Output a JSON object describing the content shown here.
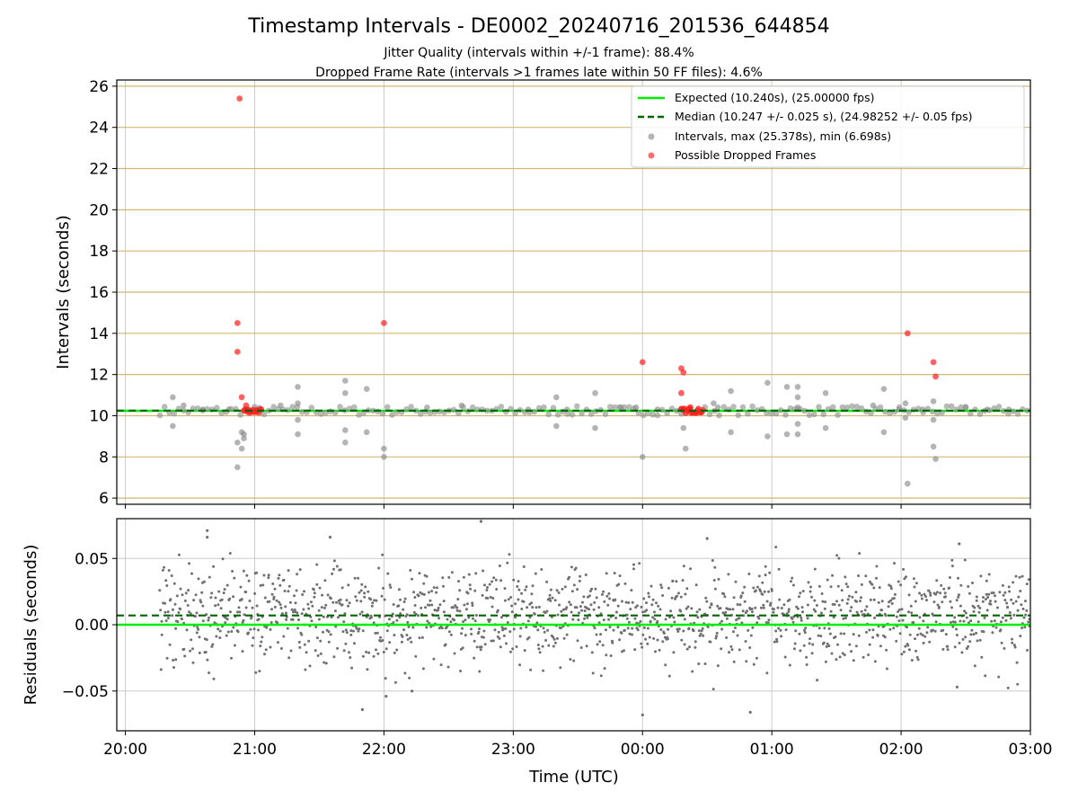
{
  "chart_data": [
    {
      "type": "scatter",
      "title": "Timestamp Intervals - DE0002_20240716_201536_644854",
      "subtitle_lines": [
        "Jitter Quality (intervals within +/-1 frame): 88.4%",
        "Dropped Frame Rate (intervals >1 frames late within 50 FF files): 4.6%"
      ],
      "xlabel": "",
      "ylabel": "Intervals (seconds)",
      "xlim": [
        "19:56",
        "03:00"
      ],
      "ylim": [
        5.7,
        26.3
      ],
      "x_tick_labels": [
        "20:00",
        "21:00",
        "22:00",
        "23:00",
        "00:00",
        "01:00",
        "02:00",
        "03:00"
      ],
      "y_ticks": [
        6,
        8,
        10,
        12,
        14,
        16,
        18,
        20,
        22,
        24,
        26
      ],
      "grid": "horizontal dark goldenrod lines at each y tick, vertical gray lines at each x tick",
      "legend_position": "upper-right",
      "legend": [
        "Expected (10.240s), (25.00000 fps)",
        "Median (10.247 +/- 0.025 s), (24.98252 +/- 0.05 fps)",
        "Intervals, max (25.378s), min (6.698s)",
        "Possible Dropped Frames"
      ],
      "expected_line": 10.24,
      "median_line": 10.247,
      "colors": {
        "expected": "#00ee00",
        "median": "#006400",
        "intervals": "#8c8c8c",
        "dropped": "#ff2020",
        "hgrid": "#d2b872",
        "vgrid": "#cccccc"
      },
      "intervals_outliers": [
        {
          "x": "20:22",
          "y": 10.9
        },
        {
          "x": "20:22",
          "y": 9.5
        },
        {
          "x": "20:27",
          "y": 10.5
        },
        {
          "x": "20:36",
          "y": 10.3
        },
        {
          "x": "20:48",
          "y": 10.3
        },
        {
          "x": "20:52",
          "y": 8.7
        },
        {
          "x": "20:52",
          "y": 7.5
        },
        {
          "x": "20:54",
          "y": 9.2
        },
        {
          "x": "20:54",
          "y": 8.4
        },
        {
          "x": "20:55",
          "y": 8.9
        },
        {
          "x": "20:55",
          "y": 9.1
        },
        {
          "x": "21:12",
          "y": 10.5
        },
        {
          "x": "21:20",
          "y": 11.4
        },
        {
          "x": "21:20",
          "y": 10.6
        },
        {
          "x": "21:20",
          "y": 9.8
        },
        {
          "x": "21:20",
          "y": 9.1
        },
        {
          "x": "21:42",
          "y": 11.7
        },
        {
          "x": "21:42",
          "y": 11.1
        },
        {
          "x": "21:42",
          "y": 9.3
        },
        {
          "x": "21:42",
          "y": 8.7
        },
        {
          "x": "21:52",
          "y": 11.3
        },
        {
          "x": "21:52",
          "y": 9.2
        },
        {
          "x": "22:00",
          "y": 8.4
        },
        {
          "x": "22:00",
          "y": 8.0
        },
        {
          "x": "22:20",
          "y": 10.4
        },
        {
          "x": "22:36",
          "y": 10.5
        },
        {
          "x": "23:07",
          "y": 10.3
        },
        {
          "x": "23:20",
          "y": 10.9
        },
        {
          "x": "23:20",
          "y": 9.5
        },
        {
          "x": "23:25",
          "y": 10.3
        },
        {
          "x": "23:38",
          "y": 11.1
        },
        {
          "x": "23:38",
          "y": 9.4
        },
        {
          "x": "23:50",
          "y": 10.4
        },
        {
          "x": "23:57",
          "y": 10.4
        },
        {
          "x": "00:00",
          "y": 8.0
        },
        {
          "x": "00:07",
          "y": 10.3
        },
        {
          "x": "00:18",
          "y": 10.3
        },
        {
          "x": "00:18",
          "y": 10.1
        },
        {
          "x": "00:19",
          "y": 9.4
        },
        {
          "x": "00:20",
          "y": 8.4
        },
        {
          "x": "00:33",
          "y": 10.6
        },
        {
          "x": "00:35",
          "y": 10.4
        },
        {
          "x": "00:41",
          "y": 11.2
        },
        {
          "x": "00:41",
          "y": 9.2
        },
        {
          "x": "00:58",
          "y": 11.6
        },
        {
          "x": "00:58",
          "y": 9.0
        },
        {
          "x": "01:07",
          "y": 11.4
        },
        {
          "x": "01:07",
          "y": 9.1
        },
        {
          "x": "01:12",
          "y": 11.4
        },
        {
          "x": "01:12",
          "y": 10.9
        },
        {
          "x": "01:12",
          "y": 10.4
        },
        {
          "x": "01:12",
          "y": 9.6
        },
        {
          "x": "01:12",
          "y": 9.1
        },
        {
          "x": "01:25",
          "y": 11.1
        },
        {
          "x": "01:25",
          "y": 9.4
        },
        {
          "x": "01:47",
          "y": 10.5
        },
        {
          "x": "01:52",
          "y": 11.3
        },
        {
          "x": "01:52",
          "y": 9.2
        },
        {
          "x": "01:59",
          "y": 10.3
        },
        {
          "x": "02:02",
          "y": 10.6
        },
        {
          "x": "02:02",
          "y": 9.9
        },
        {
          "x": "02:03",
          "y": 6.7
        },
        {
          "x": "02:10",
          "y": 10.3
        },
        {
          "x": "02:15",
          "y": 10.7
        },
        {
          "x": "02:15",
          "y": 9.8
        },
        {
          "x": "02:15",
          "y": 8.5
        },
        {
          "x": "02:16",
          "y": 7.9
        },
        {
          "x": "02:30",
          "y": 10.4
        },
        {
          "x": "02:40",
          "y": 10.3
        },
        {
          "x": "02:50",
          "y": 10.3
        }
      ],
      "dropped_frames": [
        {
          "x": "20:53",
          "y": 25.4
        },
        {
          "x": "20:52",
          "y": 14.5
        },
        {
          "x": "20:52",
          "y": 13.1
        },
        {
          "x": "20:54",
          "y": 10.9
        },
        {
          "x": "20:56",
          "y": 10.5
        },
        {
          "x": "22:00",
          "y": 14.5
        },
        {
          "x": "00:00",
          "y": 12.6
        },
        {
          "x": "00:18",
          "y": 12.3
        },
        {
          "x": "00:19",
          "y": 12.1
        },
        {
          "x": "00:18",
          "y": 11.1
        },
        {
          "x": "00:22",
          "y": 10.4
        },
        {
          "x": "02:03",
          "y": 14.0
        },
        {
          "x": "02:15",
          "y": 12.6
        },
        {
          "x": "02:16",
          "y": 11.9
        }
      ]
    },
    {
      "type": "scatter",
      "xlabel": "Time (UTC)",
      "ylabel": "Residuals (seconds)",
      "xlim": [
        "19:56",
        "03:00"
      ],
      "ylim": [
        -0.08,
        0.08
      ],
      "x_tick_labels": [
        "20:00",
        "21:00",
        "22:00",
        "23:00",
        "00:00",
        "01:00",
        "02:00",
        "03:00"
      ],
      "y_tick_labels": [
        "0.05",
        "0.00",
        "−0.05"
      ],
      "y_tick_values": [
        0.05,
        0.0,
        -0.05
      ],
      "grid": "gray lines at each tick",
      "expected_residual": 0.0,
      "median_residual": 0.007,
      "residual_points_approx_count": 1500,
      "residual_spread_sigma": 0.022,
      "residual_extremes": [
        {
          "x": "22:45",
          "y": 0.078
        },
        {
          "x": "20:38",
          "y": 0.071
        },
        {
          "x": "20:38",
          "y": 0.066
        },
        {
          "x": "21:35",
          "y": 0.066
        },
        {
          "x": "00:00",
          "y": -0.068
        },
        {
          "x": "00:50",
          "y": -0.066
        },
        {
          "x": "21:50",
          "y": -0.064
        },
        {
          "x": "22:13",
          "y": -0.05
        },
        {
          "x": "02:26",
          "y": -0.047
        },
        {
          "x": "02:27",
          "y": 0.061
        },
        {
          "x": "00:30",
          "y": 0.065
        },
        {
          "x": "22:01",
          "y": -0.054
        }
      ],
      "colors": {
        "points": "#707070",
        "expected": "#00ee00",
        "median": "#006400",
        "grid": "#cccccc"
      }
    }
  ]
}
